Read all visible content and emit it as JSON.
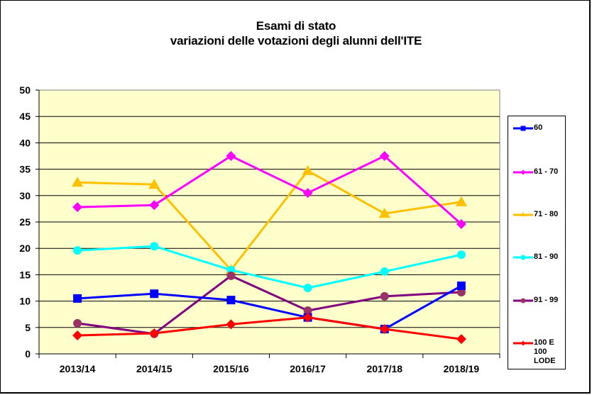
{
  "chart_data": {
    "type": "line",
    "title": "Esami di stato",
    "subtitle": "variazioni delle votazioni degli alunni dell'ITE",
    "xlabel": "",
    "ylabel": "",
    "categories": [
      "2013/14",
      "2014/15",
      "2015/16",
      "2016/17",
      "2017/18",
      "2018/19"
    ],
    "ylim": [
      0,
      50
    ],
    "yticks": [
      0,
      5,
      10,
      15,
      20,
      25,
      30,
      35,
      40,
      45,
      50
    ],
    "grid": true,
    "legend_position": "right",
    "plot_background": "#FFFFCC",
    "series": [
      {
        "name": "60",
        "color": "#0000FF",
        "marker": "square",
        "values": [
          10.5,
          11.4,
          10.2,
          6.9,
          4.7,
          12.9
        ]
      },
      {
        "name": "61 - 70",
        "color": "#FF00FF",
        "marker": "diamond",
        "values": [
          27.8,
          28.2,
          37.5,
          30.5,
          37.5,
          24.6
        ]
      },
      {
        "name": "71 - 80",
        "color": "#FFC000",
        "marker": "triangle",
        "values": [
          32.5,
          32.1,
          15.9,
          34.7,
          26.6,
          28.8
        ]
      },
      {
        "name": "81 - 90",
        "color": "#00FFFF",
        "marker": "circle",
        "values": [
          19.6,
          20.4,
          15.9,
          12.5,
          15.6,
          18.8
        ]
      },
      {
        "name": "91 - 99",
        "color": "#800080",
        "marker_color": "#993366",
        "marker": "circle",
        "values": [
          5.8,
          3.8,
          14.8,
          8.2,
          10.9,
          11.7
        ]
      },
      {
        "name": "100 E\n100\nLODE",
        "color": "#FF0000",
        "marker": "diamond",
        "values": [
          3.5,
          3.9,
          5.6,
          6.9,
          4.7,
          2.8
        ]
      }
    ]
  }
}
